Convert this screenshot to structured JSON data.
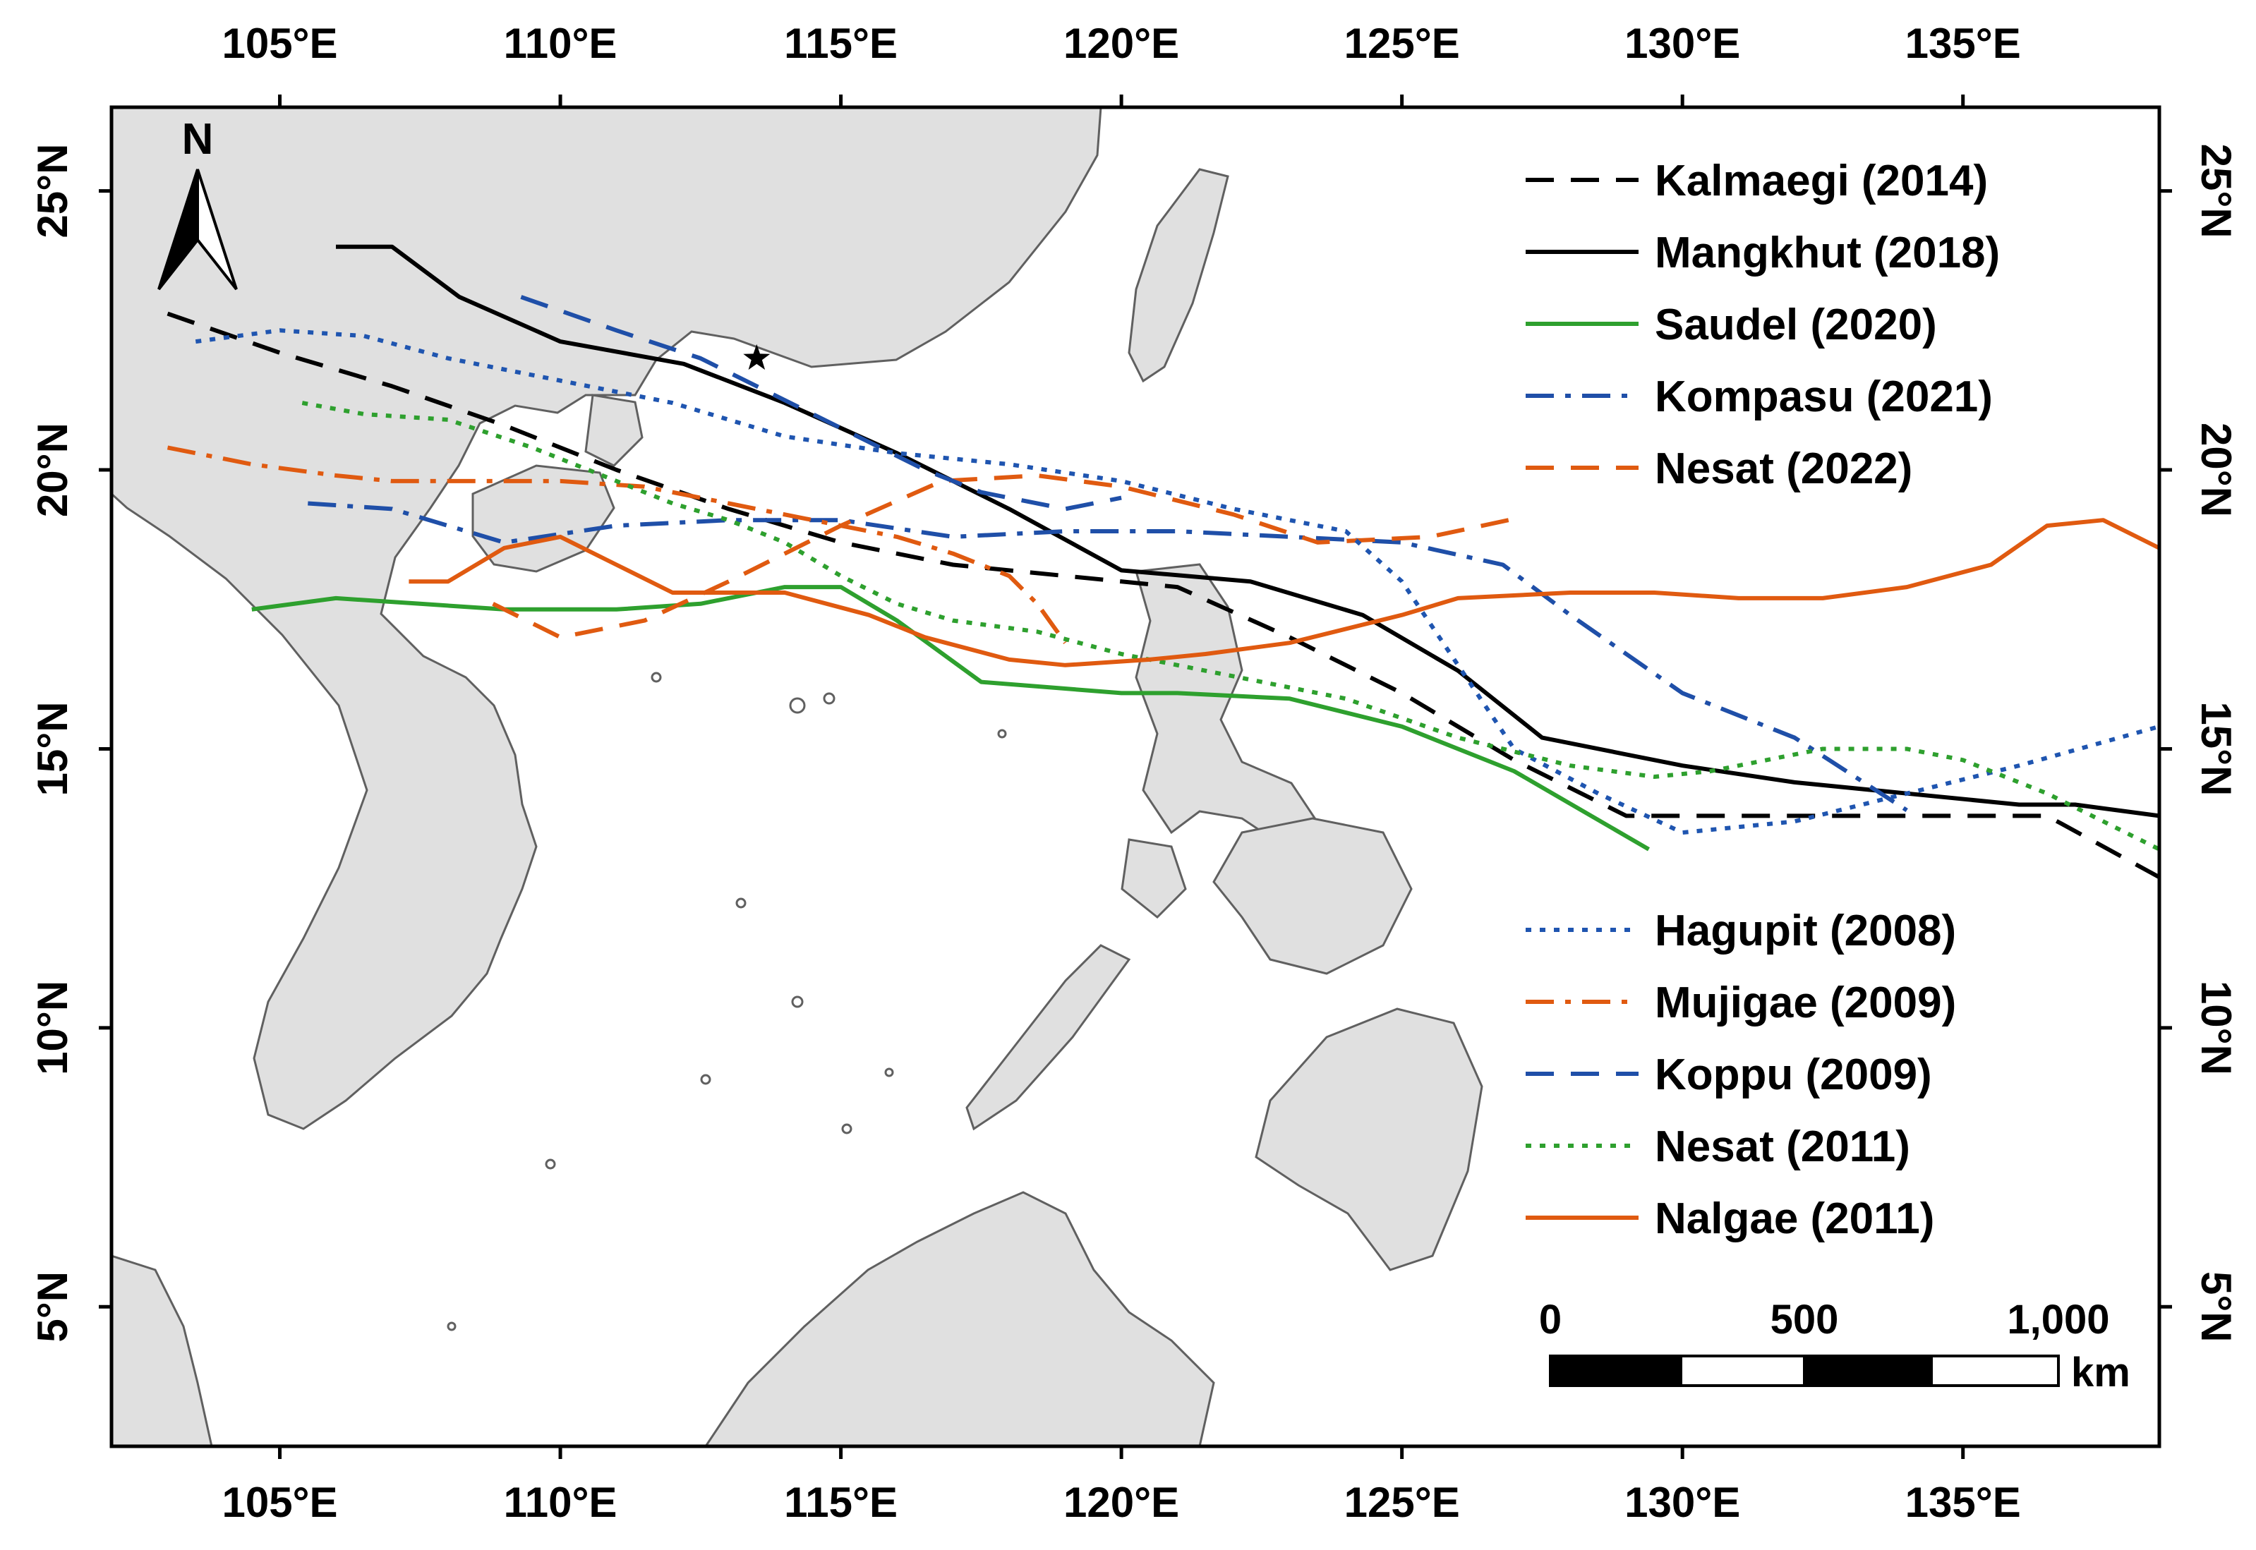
{
  "map": {
    "extent": {
      "lon_min": 102.0,
      "lon_max": 138.5,
      "lat_min": 2.5,
      "lat_max": 26.5
    },
    "land_color": "#e0e0e0",
    "coast_color": "#606060",
    "north_arrow": {
      "label": "N"
    },
    "longitude_ticks": [
      {
        "value": 105,
        "label": "105°E"
      },
      {
        "value": 110,
        "label": "110°E"
      },
      {
        "value": 115,
        "label": "115°E"
      },
      {
        "value": 120,
        "label": "120°E"
      },
      {
        "value": 125,
        "label": "125°E"
      },
      {
        "value": 130,
        "label": "130°E"
      },
      {
        "value": 135,
        "label": "135°E"
      }
    ],
    "latitude_ticks": [
      {
        "value": 25,
        "label": "25°N"
      },
      {
        "value": 20,
        "label": "20°N"
      },
      {
        "value": 15,
        "label": "15°N"
      },
      {
        "value": 10,
        "label": "10°N"
      },
      {
        "value": 5,
        "label": "5°N"
      }
    ],
    "star_marker": {
      "lon": 113.5,
      "lat": 22.0
    },
    "scale_bar": {
      "labels": [
        "0",
        "500",
        "1,000"
      ],
      "unit": "km"
    }
  },
  "tracks": [
    {
      "name": "Kalmaegi (2014)",
      "color": "#000000",
      "style": "dash",
      "points": [
        [
          103,
          22.8
        ],
        [
          105,
          22.1
        ],
        [
          107,
          21.5
        ],
        [
          109,
          20.8
        ],
        [
          111,
          20.0
        ],
        [
          113,
          19.3
        ],
        [
          115,
          18.7
        ],
        [
          117,
          18.3
        ],
        [
          119,
          18.1
        ],
        [
          121,
          17.9
        ],
        [
          123,
          17.0
        ],
        [
          125,
          16.0
        ],
        [
          127,
          14.8
        ],
        [
          129,
          13.8
        ],
        [
          130.5,
          13.8
        ],
        [
          132,
          13.8
        ],
        [
          134,
          13.8
        ],
        [
          136.5,
          13.8
        ],
        [
          138.5,
          12.7
        ]
      ]
    },
    {
      "name": "Mangkhut (2018)",
      "color": "#000000",
      "style": "solid",
      "points": [
        [
          106,
          24.0
        ],
        [
          107,
          24.0
        ],
        [
          108.2,
          23.1
        ],
        [
          110,
          22.3
        ],
        [
          112.2,
          21.9
        ],
        [
          114,
          21.2
        ],
        [
          116,
          20.3
        ],
        [
          118,
          19.3
        ],
        [
          120,
          18.2
        ],
        [
          122.3,
          18.0
        ],
        [
          124.3,
          17.4
        ],
        [
          126,
          16.4
        ],
        [
          127.5,
          15.2
        ],
        [
          129,
          14.9
        ],
        [
          130,
          14.7
        ],
        [
          132,
          14.4
        ],
        [
          134,
          14.2
        ],
        [
          136,
          14.0
        ],
        [
          137,
          14.0
        ],
        [
          138.5,
          13.8
        ]
      ]
    },
    {
      "name": "Saudel (2020)",
      "color": "#2ea02e",
      "style": "solid",
      "points": [
        [
          104.5,
          17.5
        ],
        [
          106,
          17.7
        ],
        [
          107.5,
          17.6
        ],
        [
          109,
          17.5
        ],
        [
          111,
          17.5
        ],
        [
          112.5,
          17.6
        ],
        [
          114,
          17.9
        ],
        [
          115,
          17.9
        ],
        [
          116,
          17.3
        ],
        [
          117.5,
          16.2
        ],
        [
          120,
          16.0
        ],
        [
          121,
          16.0
        ],
        [
          123,
          15.9
        ],
        [
          125,
          15.4
        ],
        [
          127,
          14.6
        ],
        [
          129.4,
          13.2
        ]
      ]
    },
    {
      "name": "Kompasu (2021)",
      "color": "#1f4fa8",
      "style": "dashdot",
      "points": [
        [
          105.5,
          19.4
        ],
        [
          107,
          19.3
        ],
        [
          109,
          18.7
        ],
        [
          111,
          19.0
        ],
        [
          113,
          19.1
        ],
        [
          115,
          19.1
        ],
        [
          117,
          18.8
        ],
        [
          119,
          18.9
        ],
        [
          121,
          18.9
        ],
        [
          123,
          18.8
        ],
        [
          125,
          18.7
        ],
        [
          126.8,
          18.3
        ],
        [
          128,
          17.4
        ],
        [
          130,
          16.0
        ],
        [
          132,
          15.2
        ],
        [
          134,
          13.9
        ]
      ]
    },
    {
      "name": "Nesat (2022)",
      "color": "#e05a10",
      "style": "dash",
      "points": [
        [
          108.8,
          17.6
        ],
        [
          110,
          17.0
        ],
        [
          111.5,
          17.3
        ],
        [
          113,
          18.0
        ],
        [
          115,
          19.0
        ],
        [
          116.8,
          19.8
        ],
        [
          118.5,
          19.9
        ],
        [
          120,
          19.7
        ],
        [
          122,
          19.2
        ],
        [
          123.5,
          18.7
        ],
        [
          125.5,
          18.8
        ],
        [
          126.9,
          19.1
        ]
      ]
    },
    {
      "name": "Hagupit (2008)",
      "color": "#1f55b0",
      "style": "dot",
      "points": [
        [
          103.5,
          22.3
        ],
        [
          105,
          22.5
        ],
        [
          106.5,
          22.4
        ],
        [
          108,
          22.0
        ],
        [
          110,
          21.6
        ],
        [
          112,
          21.2
        ],
        [
          114,
          20.6
        ],
        [
          116,
          20.3
        ],
        [
          118,
          20.1
        ],
        [
          120,
          19.8
        ],
        [
          122,
          19.3
        ],
        [
          124,
          18.9
        ],
        [
          125,
          18.0
        ],
        [
          126,
          16.5
        ],
        [
          127,
          15.0
        ],
        [
          128.5,
          14.2
        ],
        [
          130,
          13.5
        ],
        [
          132,
          13.7
        ],
        [
          134,
          14.2
        ],
        [
          136,
          14.7
        ],
        [
          138.5,
          15.4
        ]
      ]
    },
    {
      "name": "Mujigae (2009)",
      "color": "#e05a10",
      "style": "dashdot",
      "points": [
        [
          103,
          20.4
        ],
        [
          104.5,
          20.1
        ],
        [
          106,
          19.9
        ],
        [
          107,
          19.8
        ],
        [
          108.5,
          19.8
        ],
        [
          110,
          19.8
        ],
        [
          111.5,
          19.7
        ],
        [
          113,
          19.4
        ],
        [
          114.5,
          19.1
        ],
        [
          116,
          18.8
        ],
        [
          117,
          18.5
        ],
        [
          118,
          18.1
        ],
        [
          118.5,
          17.6
        ],
        [
          119,
          16.9
        ]
      ]
    },
    {
      "name": "Koppu (2009)",
      "color": "#1f4fa8",
      "style": "dash",
      "points": [
        [
          109.3,
          23.1
        ],
        [
          111,
          22.5
        ],
        [
          112.5,
          22.0
        ],
        [
          114.5,
          21.0
        ],
        [
          115.5,
          20.5
        ],
        [
          116.5,
          20.0
        ],
        [
          117.5,
          19.6
        ],
        [
          119,
          19.3
        ],
        [
          120,
          19.5
        ]
      ]
    },
    {
      "name": "Nesat (2011)",
      "color": "#2ea02e",
      "style": "dot",
      "points": [
        [
          105.4,
          21.2
        ],
        [
          106.5,
          21.0
        ],
        [
          108,
          20.9
        ],
        [
          109.5,
          20.4
        ],
        [
          111,
          19.8
        ],
        [
          112,
          19.4
        ],
        [
          113,
          19.1
        ],
        [
          114,
          18.7
        ],
        [
          115,
          18.1
        ],
        [
          116,
          17.6
        ],
        [
          117,
          17.3
        ],
        [
          118.5,
          17.1
        ],
        [
          120,
          16.7
        ],
        [
          122,
          16.3
        ],
        [
          124,
          15.9
        ],
        [
          126,
          15.2
        ],
        [
          128,
          14.7
        ],
        [
          129.5,
          14.5
        ],
        [
          130.5,
          14.6
        ],
        [
          131.5,
          14.8
        ],
        [
          132.5,
          15.0
        ],
        [
          134,
          15.0
        ],
        [
          135,
          14.8
        ],
        [
          136.5,
          14.2
        ],
        [
          138.5,
          13.2
        ]
      ]
    },
    {
      "name": "Nalgae (2011)",
      "color": "#e05a10",
      "style": "solid",
      "points": [
        [
          107.3,
          18.0
        ],
        [
          108,
          18.0
        ],
        [
          109,
          18.6
        ],
        [
          110,
          18.8
        ],
        [
          111,
          18.3
        ],
        [
          112,
          17.8
        ],
        [
          114,
          17.8
        ],
        [
          115.5,
          17.4
        ],
        [
          116.5,
          17.0
        ],
        [
          118,
          16.6
        ],
        [
          119,
          16.5
        ],
        [
          120.5,
          16.6
        ],
        [
          121.5,
          16.7
        ],
        [
          123,
          16.9
        ],
        [
          125,
          17.4
        ],
        [
          126,
          17.7
        ],
        [
          128,
          17.8
        ],
        [
          129.5,
          17.8
        ],
        [
          131,
          17.7
        ],
        [
          132.5,
          17.7
        ],
        [
          134,
          17.9
        ],
        [
          135.5,
          18.3
        ],
        [
          136.5,
          19.0
        ],
        [
          137.5,
          19.1
        ],
        [
          138.5,
          18.6
        ]
      ]
    }
  ],
  "legend": {
    "group_top": [
      0,
      1,
      2,
      3,
      4
    ],
    "group_bottom": [
      5,
      6,
      7,
      8,
      9
    ]
  }
}
